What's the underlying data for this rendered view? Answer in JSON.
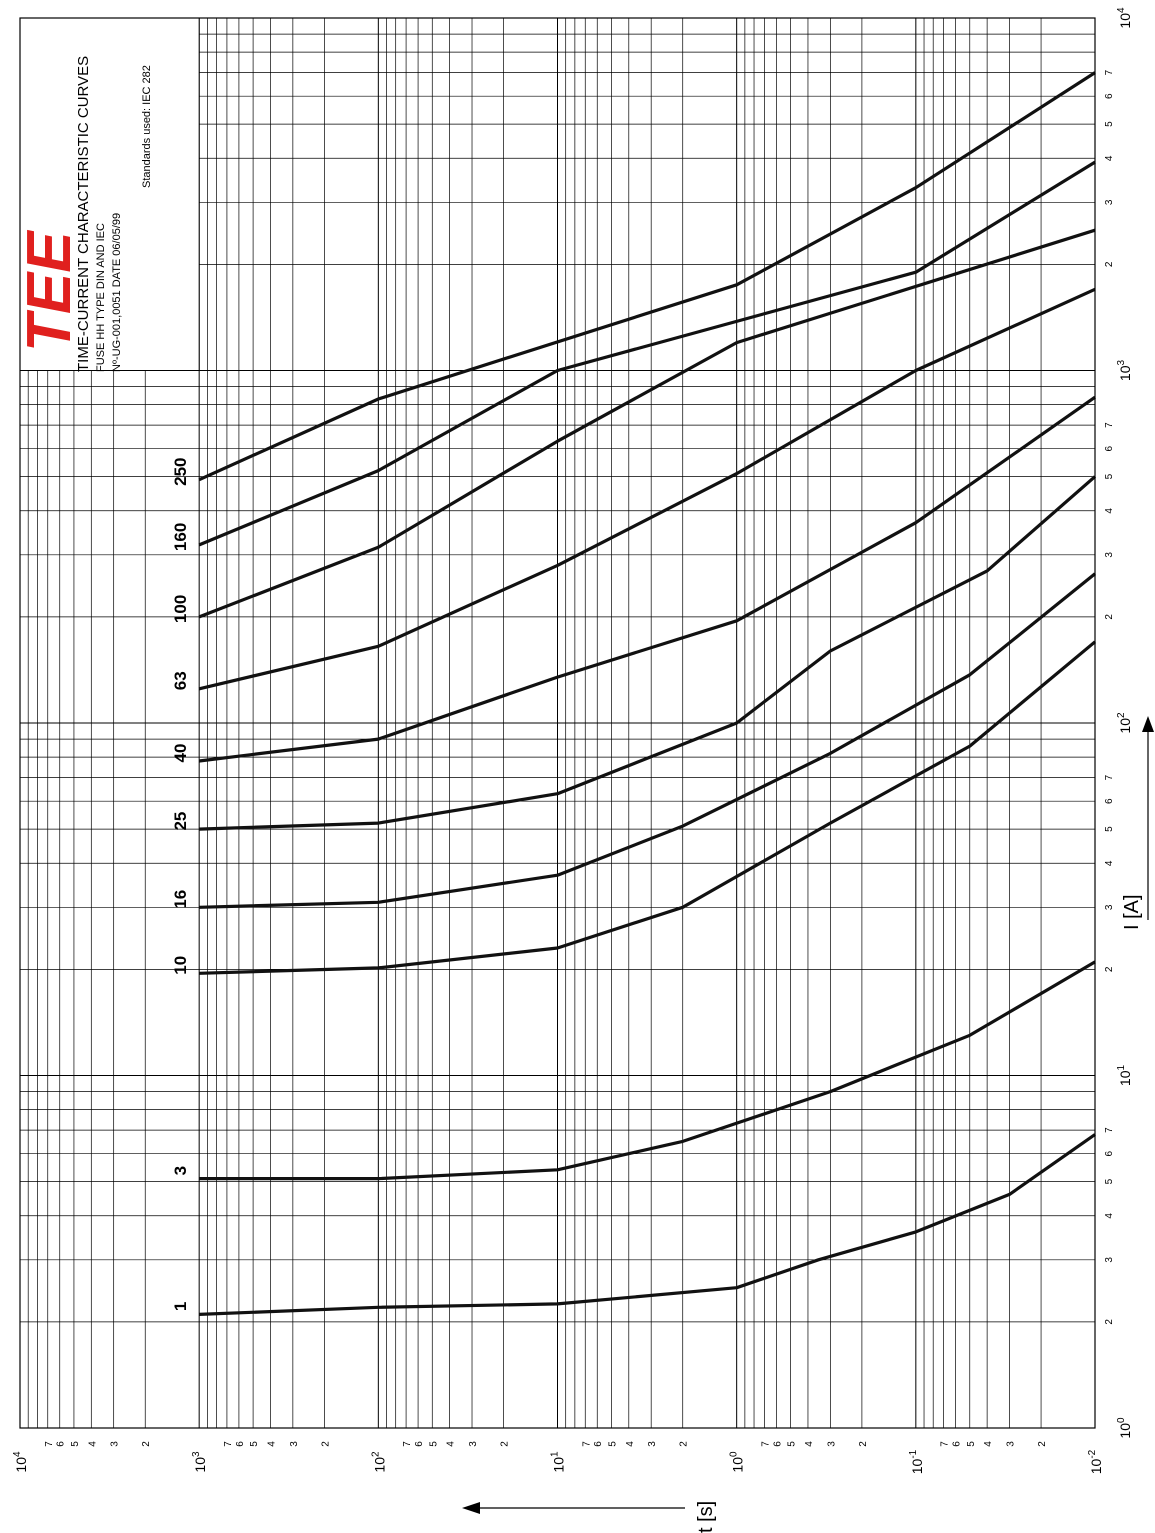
{
  "header": {
    "logo": "TEE",
    "title": "TIME-CURRENT CHARACTERISTIC CURVES",
    "line1": "FUSE HH TYPE DIN AND IEC",
    "line2": "Nº-UG-001,0051 DATE 06/05/99",
    "standards": "Standards used: IEC 282",
    "logo_color": "#e0201e"
  },
  "chart_data": {
    "type": "line",
    "log_x": true,
    "log_y": true,
    "xlabel": "I [A]",
    "ylabel": "t [s]",
    "xlim": [
      1,
      10000
    ],
    "ylim": [
      0.01,
      10000
    ],
    "x_decade_labels": [
      {
        "b": "10",
        "e": "0",
        "v": 1
      },
      {
        "b": "10",
        "e": "1",
        "v": 10
      },
      {
        "b": "10",
        "e": "2",
        "v": 100
      },
      {
        "b": "10",
        "e": "3",
        "v": 1000
      },
      {
        "b": "10",
        "e": "4",
        "v": 10000
      }
    ],
    "y_decade_labels": [
      {
        "b": "10",
        "e": "4",
        "v": 10000
      },
      {
        "b": "10",
        "e": "3",
        "v": 1000
      },
      {
        "b": "10",
        "e": "2",
        "v": 100
      },
      {
        "b": "10",
        "e": "1",
        "v": 10
      },
      {
        "b": "10",
        "e": "0",
        "v": 1
      },
      {
        "b": "10",
        "e": "-1",
        "v": 0.1
      },
      {
        "b": "10",
        "e": "-2",
        "v": 0.01
      }
    ],
    "minor_labels": [
      "2",
      "3",
      "4",
      "5",
      "6",
      "7"
    ],
    "grid": true,
    "series": [
      {
        "name": "1",
        "points": [
          [
            2.1,
            1000
          ],
          [
            2.2,
            100
          ],
          [
            2.25,
            10
          ],
          [
            2.5,
            1
          ],
          [
            3.0,
            0.35
          ],
          [
            3.6,
            0.1
          ],
          [
            4.6,
            0.03
          ],
          [
            6.8,
            0.01
          ]
        ]
      },
      {
        "name": "3",
        "points": [
          [
            5.1,
            1000
          ],
          [
            5.1,
            100
          ],
          [
            5.4,
            10
          ],
          [
            6.5,
            2
          ],
          [
            9.0,
            0.3
          ],
          [
            13,
            0.05
          ],
          [
            21,
            0.01
          ]
        ]
      },
      {
        "name": "10",
        "points": [
          [
            19.5,
            1000
          ],
          [
            20.2,
            100
          ],
          [
            23,
            10
          ],
          [
            30,
            2
          ],
          [
            52,
            0.3
          ],
          [
            86,
            0.05
          ],
          [
            170,
            0.01
          ]
        ]
      },
      {
        "name": "16",
        "points": [
          [
            30,
            1000
          ],
          [
            31,
            100
          ],
          [
            37,
            10
          ],
          [
            51,
            2
          ],
          [
            82,
            0.3
          ],
          [
            137,
            0.05
          ],
          [
            265,
            0.01
          ]
        ]
      },
      {
        "name": "25",
        "points": [
          [
            50,
            1000
          ],
          [
            52,
            100
          ],
          [
            63,
            10
          ],
          [
            100,
            1
          ],
          [
            160,
            0.3
          ],
          [
            270,
            0.04
          ],
          [
            500,
            0.01
          ]
        ]
      },
      {
        "name": "40",
        "points": [
          [
            78,
            1000
          ],
          [
            90,
            100
          ],
          [
            135,
            10
          ],
          [
            195,
            1
          ],
          [
            370,
            0.1
          ],
          [
            840,
            0.01
          ]
        ]
      },
      {
        "name": "63",
        "points": [
          [
            125,
            1000
          ],
          [
            165,
            100
          ],
          [
            280,
            10
          ],
          [
            510,
            1
          ],
          [
            1000,
            0.1
          ],
          [
            1700,
            0.01
          ]
        ]
      },
      {
        "name": "100",
        "points": [
          [
            200,
            1000
          ],
          [
            315,
            100
          ],
          [
            630,
            10
          ],
          [
            1200,
            1
          ],
          [
            2500,
            0.01
          ]
        ]
      },
      {
        "name": "160",
        "points": [
          [
            320,
            1000
          ],
          [
            520,
            100
          ],
          [
            1000,
            10
          ],
          [
            1900,
            0.1
          ],
          [
            3900,
            0.01
          ]
        ]
      },
      {
        "name": "250",
        "points": [
          [
            490,
            1000
          ],
          [
            830,
            100
          ],
          [
            1750,
            1
          ],
          [
            3300,
            0.1
          ],
          [
            7000,
            0.01
          ]
        ]
      }
    ]
  }
}
